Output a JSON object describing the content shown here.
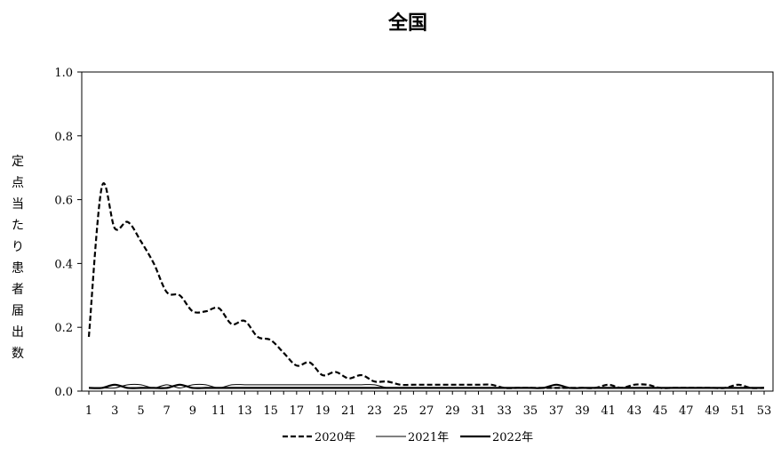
{
  "chart_data": {
    "type": "line",
    "title": "全国",
    "xlabel": "",
    "ylabel": "定点当たり患者届出数",
    "x": [
      1,
      2,
      3,
      4,
      5,
      6,
      7,
      8,
      9,
      10,
      11,
      12,
      13,
      14,
      15,
      16,
      17,
      18,
      19,
      20,
      21,
      22,
      23,
      24,
      25,
      26,
      27,
      28,
      29,
      30,
      31,
      32,
      33,
      34,
      35,
      36,
      37,
      38,
      39,
      40,
      41,
      42,
      43,
      44,
      45,
      46,
      47,
      48,
      49,
      50,
      51,
      52,
      53
    ],
    "x_tick_labels": [
      "1",
      "3",
      "5",
      "7",
      "9",
      "11",
      "13",
      "15",
      "17",
      "19",
      "21",
      "23",
      "25",
      "27",
      "29",
      "31",
      "33",
      "35",
      "37",
      "39",
      "41",
      "43",
      "45",
      "47",
      "49",
      "51",
      "53"
    ],
    "ylim": [
      0,
      1.0
    ],
    "y_tick_labels": [
      "0.0",
      "0.2",
      "0.4",
      "0.6",
      "0.8",
      "1.0"
    ],
    "grid": false,
    "legend_position": "bottom",
    "series": [
      {
        "name": "2020年",
        "style": "dashed",
        "values": [
          0.17,
          0.64,
          0.51,
          0.53,
          0.47,
          0.4,
          0.31,
          0.3,
          0.25,
          0.25,
          0.26,
          0.21,
          0.22,
          0.17,
          0.16,
          0.12,
          0.08,
          0.09,
          0.05,
          0.06,
          0.04,
          0.05,
          0.03,
          0.03,
          0.02,
          0.02,
          0.02,
          0.02,
          0.02,
          0.02,
          0.02,
          0.02,
          0.01,
          0.01,
          0.01,
          0.01,
          0.01,
          0.01,
          0.01,
          0.01,
          0.02,
          0.01,
          0.02,
          0.02,
          0.01,
          0.01,
          0.01,
          0.01,
          0.01,
          0.01,
          0.02,
          0.01,
          0.01
        ]
      },
      {
        "name": "2021年",
        "style": "thin",
        "values": [
          0.01,
          0.01,
          0.01,
          0.02,
          0.02,
          0.01,
          0.02,
          0.01,
          0.02,
          0.02,
          0.01,
          0.02,
          0.02,
          0.02,
          0.02,
          0.02,
          0.02,
          0.02,
          0.02,
          0.02,
          0.02,
          0.02,
          0.02,
          0.01,
          0.01,
          0.01,
          0.01,
          0.01,
          0.01,
          0.01,
          0.01,
          0.01,
          0.01,
          0.01,
          0.01,
          0.01,
          0.01,
          0.01,
          0.01,
          0.01,
          0.01,
          0.01,
          0.01,
          0.01,
          0.01,
          0.01,
          0.01,
          0.01,
          0.01,
          0.01,
          0.01,
          0.01,
          0.01
        ]
      },
      {
        "name": "2022年",
        "style": "thick",
        "values": [
          0.01,
          0.01,
          0.02,
          0.01,
          0.01,
          0.01,
          0.01,
          0.02,
          0.01,
          0.01,
          0.01,
          0.01,
          0.01,
          0.01,
          0.01,
          0.01,
          0.01,
          0.01,
          0.01,
          0.01,
          0.01,
          0.01,
          0.01,
          0.01,
          0.01,
          0.01,
          0.01,
          0.01,
          0.01,
          0.01,
          0.01,
          0.01,
          0.01,
          0.01,
          0.01,
          0.01,
          0.02,
          0.01,
          0.01,
          0.01,
          0.01,
          0.01,
          0.01,
          0.01,
          0.01,
          0.01,
          0.01,
          0.01,
          0.01,
          0.01,
          0.01,
          0.01,
          0.01
        ]
      }
    ]
  }
}
